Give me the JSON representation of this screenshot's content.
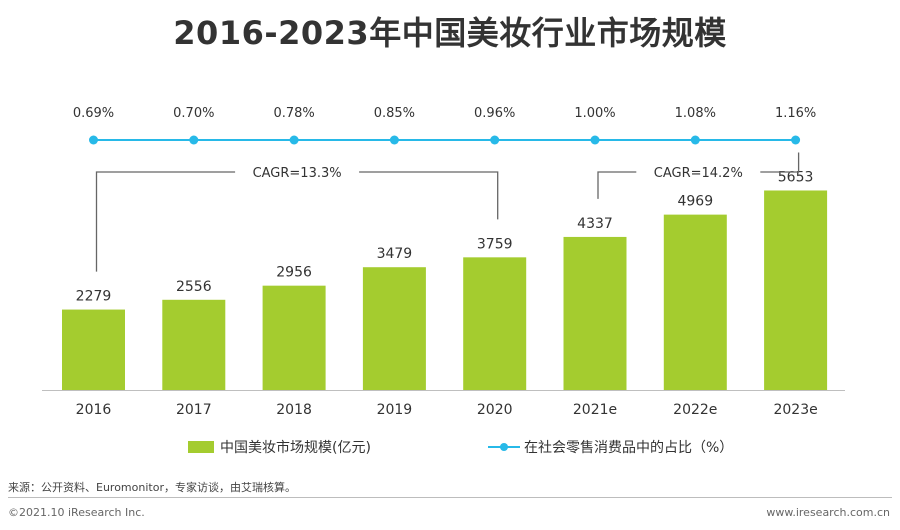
{
  "title": "2016-2023年中国美妆行业市场规模",
  "chart_data": {
    "type": "bar",
    "title": "2016-2023年中国美妆行业市场规模",
    "categories": [
      "2016",
      "2017",
      "2018",
      "2019",
      "2020",
      "2021e",
      "2022e",
      "2023e"
    ],
    "series": [
      {
        "name": "中国美妆市场规模(亿元)",
        "type": "bar",
        "values": [
          2279,
          2556,
          2956,
          3479,
          3759,
          4337,
          4969,
          5653
        ],
        "labels": [
          "2279",
          "2556",
          "2956",
          "3479",
          "3759",
          "4337",
          "4969",
          "5653"
        ]
      },
      {
        "name": "在社会零售消费品中的占比（%）",
        "type": "line",
        "values": [
          0.69,
          0.7,
          0.78,
          0.85,
          0.96,
          1.0,
          1.08,
          1.16
        ],
        "labels": [
          "0.69%",
          "0.70%",
          "0.78%",
          "0.85%",
          "0.96%",
          "1.00%",
          "1.08%",
          "1.16%"
        ]
      }
    ],
    "annotations": [
      {
        "text": "CAGR=13.3%",
        "from": "2016",
        "to": "2020"
      },
      {
        "text": "CAGR=14.2%",
        "from": "2021e",
        "to": "2023e"
      }
    ],
    "ylim": [
      0,
      6800
    ],
    "legend_position": "bottom",
    "grid": false
  },
  "colors": {
    "bar": "#a4cc2f",
    "line": "#27b9e8",
    "bracket": "#666666",
    "axis": "#bfbfbf"
  },
  "legend": {
    "bar_label": "中国美妆市场规模(亿元)",
    "line_label": "在社会零售消费品中的占比（%）"
  },
  "footer": {
    "source": "来源：公开资料、Euromonitor，专家访谈，由艾瑞核算。",
    "copyright": "©2021.10 iResearch Inc.",
    "website": "www.iresearch.com.cn"
  }
}
